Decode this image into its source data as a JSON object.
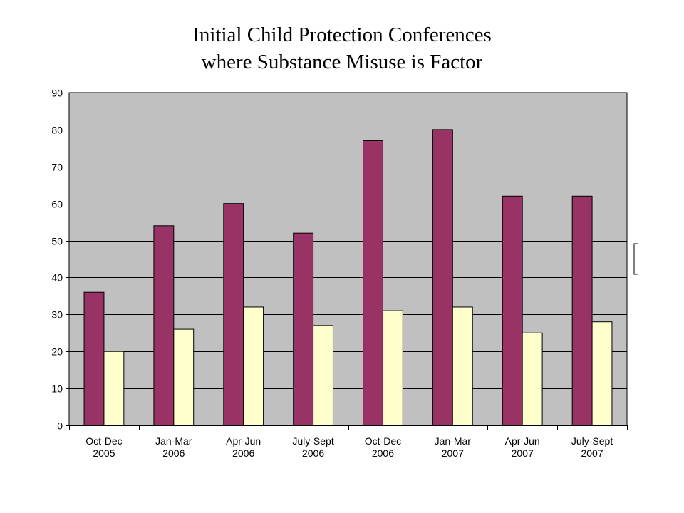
{
  "chart_data": {
    "type": "bar",
    "title_lines": [
      "Initial Child Protection Conferences",
      "where Substance Misuse is Factor"
    ],
    "categories": [
      [
        "Oct-Dec",
        "2005"
      ],
      [
        "Jan-Mar",
        "2006"
      ],
      [
        "Apr-Jun",
        "2006"
      ],
      [
        "July-Sept",
        "2006"
      ],
      [
        "Oct-Dec",
        "2006"
      ],
      [
        "Jan-Mar",
        "2007"
      ],
      [
        "Apr-Jun",
        "2007"
      ],
      [
        "July-Sept",
        "2007"
      ]
    ],
    "series": [
      {
        "values": [
          36,
          54,
          60,
          52,
          77,
          80,
          62,
          62
        ],
        "color": "#993366"
      },
      {
        "values": [
          20,
          26,
          32,
          27,
          31,
          32,
          25,
          28
        ],
        "color": "#ffffcc"
      }
    ],
    "ylim": [
      0,
      90
    ],
    "yticks": [
      0,
      10,
      20,
      30,
      40,
      50,
      60,
      70,
      80,
      90
    ],
    "grid": true,
    "plot_background": "#c0c0c0",
    "legend": "right (clipped)"
  }
}
